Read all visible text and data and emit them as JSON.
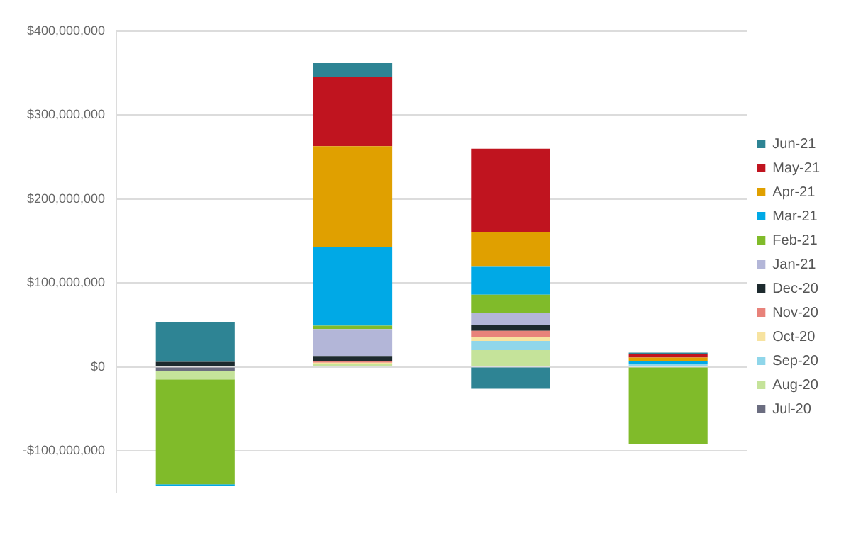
{
  "chart_data": {
    "type": "bar",
    "stacked": true,
    "categories": [
      null,
      null,
      null,
      null
    ],
    "series": [
      {
        "name": "Jul-20",
        "color": "#6b6d80",
        "values": [
          -5000000,
          0,
          0,
          0
        ]
      },
      {
        "name": "Aug-20",
        "color": "#c5e39a",
        "values": [
          -10000000,
          3000000,
          20000000,
          0
        ]
      },
      {
        "name": "Sep-20",
        "color": "#8fd6ea",
        "values": [
          0,
          0,
          11000000,
          3000000
        ]
      },
      {
        "name": "Oct-20",
        "color": "#f7e3a0",
        "values": [
          0,
          2000000,
          5000000,
          0
        ]
      },
      {
        "name": "Nov-20",
        "color": "#e8827a",
        "values": [
          0,
          2000000,
          7000000,
          0
        ]
      },
      {
        "name": "Dec-20",
        "color": "#1d2a2e",
        "values": [
          6000000,
          6000000,
          7000000,
          0
        ]
      },
      {
        "name": "Jan-21",
        "color": "#b3b6d8",
        "values": [
          0,
          32000000,
          14000000,
          0
        ]
      },
      {
        "name": "Feb-21",
        "color": "#80bb2a",
        "values": [
          -125000000,
          4000000,
          22000000,
          -92000000
        ]
      },
      {
        "name": "Mar-21",
        "color": "#00a9e6",
        "values": [
          -2000000,
          94000000,
          34000000,
          4000000
        ]
      },
      {
        "name": "Apr-21",
        "color": "#e0a000",
        "values": [
          0,
          120000000,
          41000000,
          4000000
        ]
      },
      {
        "name": "May-21",
        "color": "#c0141f",
        "values": [
          0,
          82000000,
          99000000,
          4000000
        ]
      },
      {
        "name": "Jun-21",
        "color": "#2e8494",
        "values": [
          47000000,
          17000000,
          -26000000,
          2000000
        ]
      }
    ],
    "ylim": [
      -150000000,
      400000000
    ],
    "yticks": [
      {
        "value": -100000000,
        "label": "-$100,000,000"
      },
      {
        "value": 0,
        "label": "$0"
      },
      {
        "value": 100000000,
        "label": "$100,000,000"
      },
      {
        "value": 200000000,
        "label": "$200,000,000"
      },
      {
        "value": 300000000,
        "label": "$300,000,000"
      },
      {
        "value": 400000000,
        "label": "$400,000,000"
      }
    ],
    "grid": "y",
    "legend": "right"
  }
}
